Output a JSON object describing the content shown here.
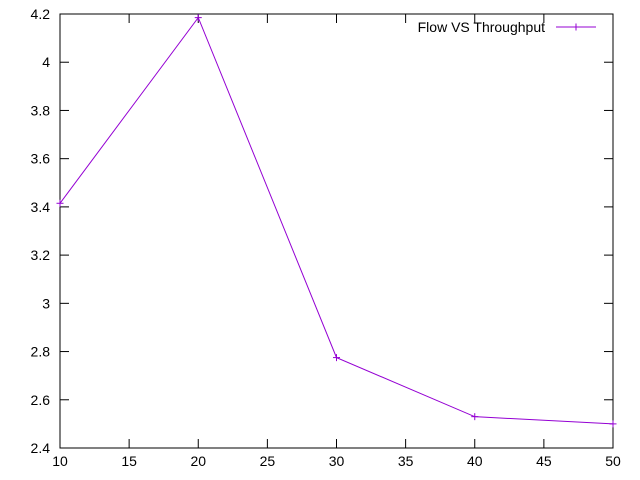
{
  "chart_data": {
    "type": "line",
    "title": "",
    "xlabel": "",
    "ylabel": "",
    "xlim": [
      10,
      50
    ],
    "ylim": [
      2.4,
      4.2
    ],
    "xticks": [
      10,
      15,
      20,
      25,
      30,
      35,
      40,
      45,
      50
    ],
    "yticks": [
      2.4,
      2.6,
      2.8,
      3,
      3.2,
      3.4,
      3.6,
      3.8,
      4,
      4.2
    ],
    "xtick_labels": [
      "10",
      "15",
      "20",
      "25",
      "30",
      "35",
      "40",
      "45",
      "50"
    ],
    "ytick_labels": [
      "2.4",
      "2.6",
      "2.8",
      "3",
      "3.2",
      "3.4",
      "3.6",
      "3.8",
      "4",
      "4.2"
    ],
    "grid": false,
    "legend_position": "top-right",
    "series": [
      {
        "name": "Flow VS Throughput",
        "color": "#9400d3",
        "marker": "plus",
        "x": [
          10,
          20,
          30,
          40,
          50
        ],
        "y": [
          3.415,
          4.185,
          2.775,
          2.53,
          2.5
        ]
      }
    ]
  }
}
